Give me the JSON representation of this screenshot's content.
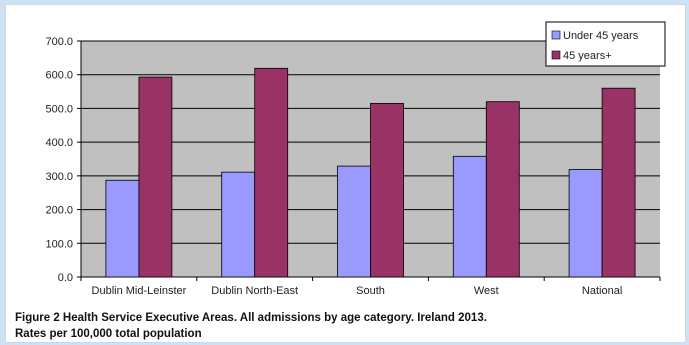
{
  "chart_data": {
    "type": "bar",
    "categories": [
      "Dublin Mid-Leinster",
      "Dublin North-East",
      "South",
      "West",
      "National"
    ],
    "series": [
      {
        "name": "Under 45 years",
        "values": [
          287,
          311,
          329,
          358,
          319
        ],
        "color": "#9999ff"
      },
      {
        "name": "45 years+",
        "values": [
          593,
          619,
          515,
          520,
          560
        ],
        "color": "#993366"
      }
    ],
    "ylim": [
      0,
      700
    ],
    "yticks": [
      "0.0",
      "100.0",
      "200.0",
      "300.0",
      "400.0",
      "500.0",
      "600.0",
      "700.0"
    ],
    "grid": true,
    "plot_background": "#c0c0c0",
    "legend_position": "top-right"
  },
  "caption": {
    "line1": "Figure 2   Health Service Executive Areas. All admissions  by age category. Ireland 2013.",
    "line2": "Rates per 100,000 total population"
  }
}
